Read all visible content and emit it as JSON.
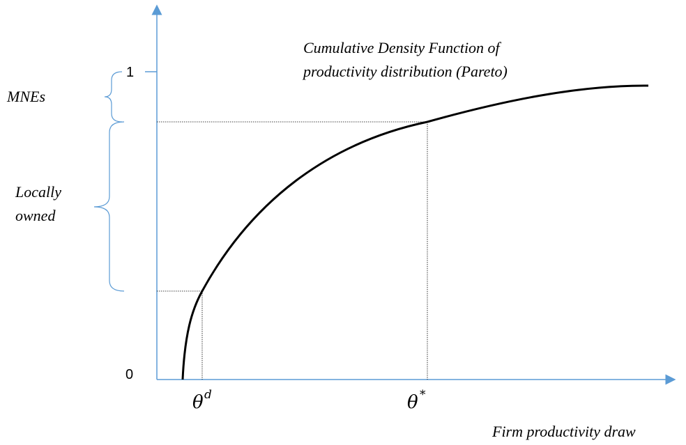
{
  "title": {
    "line1": "Cumulative Density Function of",
    "line2": "productivity distribution (Pareto)"
  },
  "y_axis": {
    "top_label": "1",
    "bottom_label": "0"
  },
  "groups": {
    "mnes": "MNEs",
    "local_line1": "Locally",
    "local_line2": "owned"
  },
  "x_markers": [
    {
      "base": "θ",
      "sup": "d"
    },
    {
      "base": "θ",
      "sup": "*"
    }
  ],
  "x_axis": {
    "label": "Firm productivity draw"
  }
}
